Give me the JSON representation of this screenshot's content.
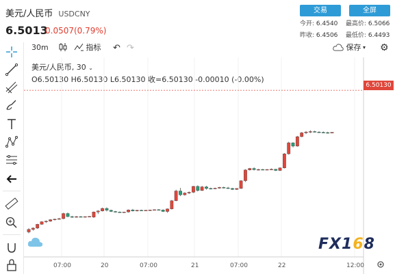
{
  "header": {
    "title": "美元/人民币",
    "symbol": "USDCNY",
    "price": "6.5013",
    "change": "0.0507(0.79%)",
    "trade_btn": "交易",
    "fullscreen_btn": "全屏",
    "stats": {
      "open_label": "今开:",
      "open": "6.4540",
      "high_label": "最高价:",
      "high": "6.5066",
      "prev_label": "昨收:",
      "prev": "6.4506",
      "low_label": "最低价:",
      "low": "6.4493"
    }
  },
  "toolbar": {
    "interval": "30m",
    "indicators": "指标",
    "save": "保存"
  },
  "legend": {
    "pair": "美元/人民币, 30",
    "ohlc": "O6.50130 H6.50130 L6.50130 收=6.50130 -0.00010 (-0.00%)"
  },
  "price_label": "6.50130",
  "logo": {
    "a": "FX1",
    "o": "6",
    "b": "8"
  },
  "colors": {
    "up": "#e0463a",
    "down": "#2a9d78",
    "accent": "#2e9bd6"
  },
  "chart_data": {
    "type": "candlestick",
    "series_name": "美元/人民币, 30",
    "x_tick_labels": [
      "07:00",
      "20",
      "07:00",
      "21",
      "07:00",
      "22",
      "12:00"
    ],
    "y_range": [
      6.44,
      6.512
    ],
    "last_price": 6.5013,
    "candles": [
      [
        6.446,
        6.4475,
        6.4455,
        6.447
      ],
      [
        6.447,
        6.4478,
        6.4465,
        6.4475
      ],
      [
        6.4475,
        6.4492,
        6.4472,
        6.449
      ],
      [
        6.449,
        6.4502,
        6.4488,
        6.45
      ],
      [
        6.45,
        6.4505,
        6.4495,
        6.4502
      ],
      [
        6.4502,
        6.451,
        6.45,
        6.4508
      ],
      [
        6.4508,
        6.4512,
        6.4505,
        6.451
      ],
      [
        6.451,
        6.4515,
        6.4508,
        6.4512
      ],
      [
        6.4512,
        6.4535,
        6.451,
        6.4532
      ],
      [
        6.4532,
        6.4536,
        6.4518,
        6.452
      ],
      [
        6.452,
        6.4523,
        6.4515,
        6.4518
      ],
      [
        6.4518,
        6.4522,
        6.4516,
        6.452
      ],
      [
        6.452,
        6.4522,
        6.4517,
        6.4519
      ],
      [
        6.4519,
        6.4521,
        6.4517,
        6.452
      ],
      [
        6.452,
        6.4522,
        6.4518,
        6.4521
      ],
      [
        6.4518,
        6.454,
        6.4515,
        6.4538
      ],
      [
        6.4538,
        6.4545,
        6.453,
        6.4542
      ],
      [
        6.4542,
        6.4555,
        6.454,
        6.4552
      ],
      [
        6.4552,
        6.4556,
        6.454,
        6.4545
      ],
      [
        6.4545,
        6.4547,
        6.4538,
        6.454
      ],
      [
        6.454,
        6.4542,
        6.4536,
        6.4538
      ],
      [
        6.4538,
        6.454,
        6.4535,
        6.4537
      ],
      [
        6.4537,
        6.4539,
        6.4535,
        6.4538
      ],
      [
        6.4538,
        6.4548,
        6.4536,
        6.4546
      ],
      [
        6.4546,
        6.455,
        6.454,
        6.4542
      ],
      [
        6.4542,
        6.4546,
        6.454,
        6.4545
      ],
      [
        6.4545,
        6.4547,
        6.4542,
        6.4544
      ],
      [
        6.4544,
        6.4546,
        6.4542,
        6.4545
      ],
      [
        6.4545,
        6.4547,
        6.4542,
        6.4546
      ],
      [
        6.4546,
        6.4548,
        6.4544,
        6.4547
      ],
      [
        6.4547,
        6.4549,
        6.4545,
        6.4546
      ],
      [
        6.4546,
        6.4548,
        6.4538,
        6.454
      ],
      [
        6.454,
        6.4552,
        6.4535,
        6.455
      ],
      [
        6.455,
        6.4585,
        6.4548,
        6.4582
      ],
      [
        6.4582,
        6.4625,
        6.458,
        6.462
      ],
      [
        6.462,
        6.4632,
        6.46,
        6.4605
      ],
      [
        6.4605,
        6.4615,
        6.4602,
        6.4612
      ],
      [
        6.4612,
        6.4618,
        6.4608,
        6.4615
      ],
      [
        6.4615,
        6.464,
        6.4612,
        6.4638
      ],
      [
        6.4638,
        6.4642,
        6.4618,
        6.4622
      ],
      [
        6.4622,
        6.464,
        6.462,
        6.4636
      ],
      [
        6.4636,
        6.464,
        6.4625,
        6.463
      ],
      [
        6.463,
        6.4633,
        6.4626,
        6.4629
      ],
      [
        6.4629,
        6.4633,
        6.4627,
        6.4631
      ],
      [
        6.4631,
        6.4636,
        6.4629,
        6.4634
      ],
      [
        6.4634,
        6.4637,
        6.463,
        6.4632
      ],
      [
        6.4632,
        6.4636,
        6.4628,
        6.463
      ],
      [
        6.463,
        6.4632,
        6.4624,
        6.4626
      ],
      [
        6.4626,
        6.4631,
        6.4624,
        6.463
      ],
      [
        6.463,
        6.4662,
        6.4628,
        6.466
      ],
      [
        6.466,
        6.4705,
        6.4655,
        6.4702
      ],
      [
        6.4702,
        6.471,
        6.47,
        6.4708
      ],
      [
        6.4708,
        6.4712,
        6.47,
        6.4703
      ],
      [
        6.4703,
        6.4706,
        6.47,
        6.4704
      ],
      [
        6.4704,
        6.4706,
        6.4702,
        6.4703
      ],
      [
        6.4703,
        6.4705,
        6.4701,
        6.4704
      ],
      [
        6.4704,
        6.4708,
        6.4702,
        6.4705
      ],
      [
        6.4705,
        6.4706,
        6.4698,
        6.47
      ],
      [
        6.47,
        6.4712,
        6.4698,
        6.471
      ],
      [
        6.471,
        6.4768,
        6.4708,
        6.4765
      ],
      [
        6.4765,
        6.4812,
        6.4762,
        6.4808
      ],
      [
        6.4808,
        6.481,
        6.479,
        6.4795
      ],
      [
        6.4795,
        6.4835,
        6.4793,
        6.4832
      ],
      [
        6.4832,
        6.485,
        6.483,
        6.4847
      ],
      [
        6.4847,
        6.4854,
        6.4842,
        6.485
      ],
      [
        6.485,
        6.4857,
        6.4846,
        6.4852
      ],
      [
        6.4852,
        6.4855,
        6.4848,
        6.485
      ],
      [
        6.485,
        6.4853,
        6.4847,
        6.4849
      ],
      [
        6.4849,
        6.4852,
        6.4846,
        6.4848
      ],
      [
        6.4848,
        6.4851,
        6.4844,
        6.4846
      ],
      [
        6.4846,
        6.485,
        6.4845,
        6.4849
      ]
    ]
  }
}
